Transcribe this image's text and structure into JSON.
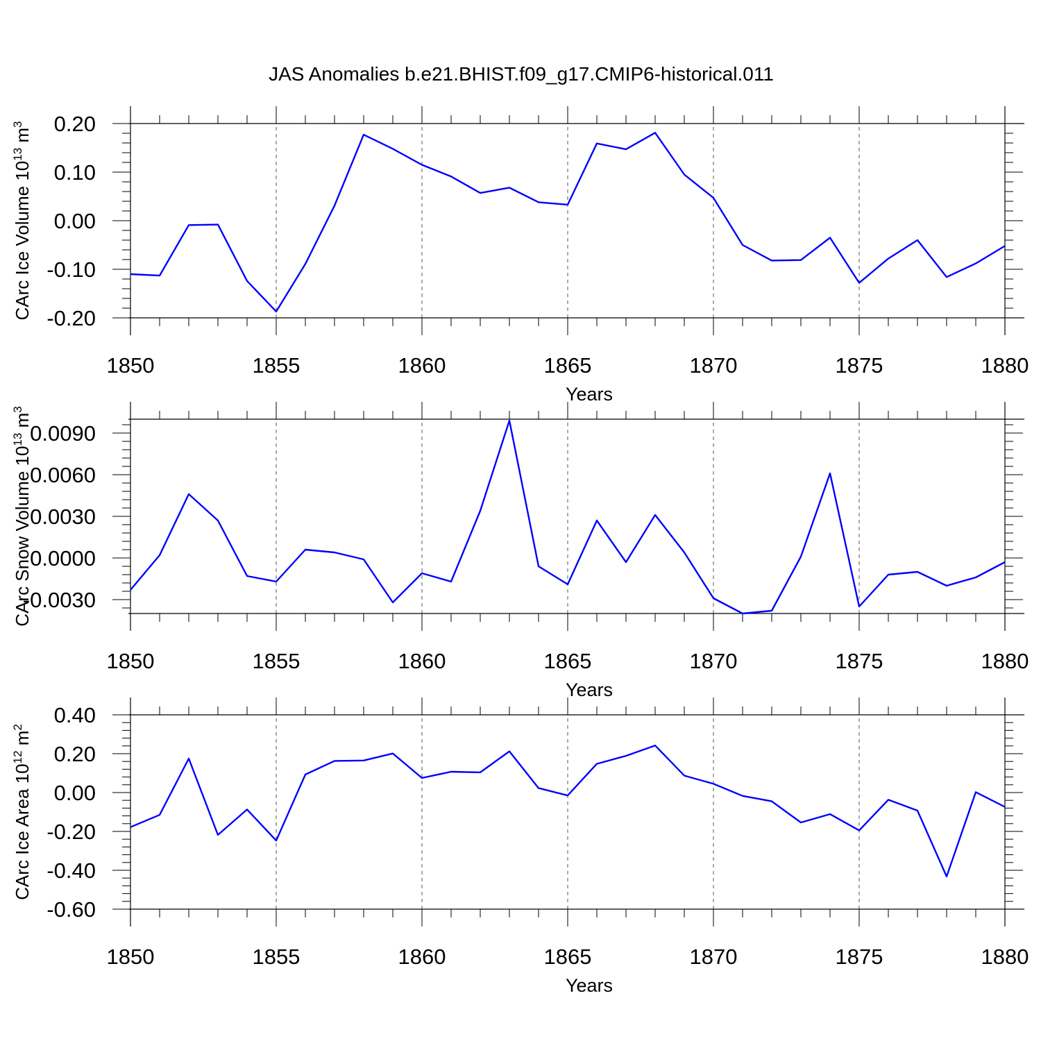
{
  "title": "JAS Anomalies b.e21.BHIST.f09_g17.CMIP6-historical.011",
  "colors": {
    "line": "#0000ff",
    "axis": "#000000",
    "grid": "#555555"
  },
  "chart_data": [
    {
      "type": "line",
      "xlabel": "Years",
      "ylabel": "CArc Ice Volume 10",
      "ylabel_exp": "13",
      "ylabel_unit": " m",
      "ylabel_unit_exp": "3",
      "xlim": [
        1850,
        1880
      ],
      "ylim": [
        -0.2,
        0.2
      ],
      "xticks": [
        "1850",
        "1855",
        "1860",
        "1865",
        "1870",
        "1875",
        "1880"
      ],
      "yticks": [
        "0.20",
        "0.10",
        "0.00",
        "-0.10",
        "-0.20"
      ],
      "grid": "vertical dashed at major x ticks",
      "x": [
        1850,
        1851,
        1852,
        1853,
        1854,
        1855,
        1856,
        1857,
        1858,
        1859,
        1860,
        1861,
        1862,
        1863,
        1864,
        1865,
        1866,
        1867,
        1868,
        1869,
        1870,
        1871,
        1872,
        1873,
        1874,
        1875,
        1876,
        1877,
        1878,
        1879,
        1880
      ],
      "values": [
        -0.11,
        -0.113,
        -0.009,
        -0.008,
        -0.124,
        -0.187,
        -0.089,
        0.031,
        0.177,
        0.148,
        0.115,
        0.091,
        0.057,
        0.068,
        0.038,
        0.033,
        0.159,
        0.147,
        0.181,
        0.095,
        0.047,
        -0.05,
        -0.082,
        -0.081,
        -0.035,
        -0.128,
        -0.078,
        -0.04,
        -0.116,
        -0.088,
        -0.052
      ]
    },
    {
      "type": "line",
      "xlabel": "Years",
      "ylabel": "CArc Snow Volume 10",
      "ylabel_exp": "13",
      "ylabel_unit": " m",
      "ylabel_unit_exp": "3",
      "xlim": [
        1850,
        1880
      ],
      "ylim": [
        -0.004,
        0.01
      ],
      "xticks": [
        "1850",
        "1855",
        "1860",
        "1865",
        "1870",
        "1875",
        "1880"
      ],
      "yticks": [
        "0.0090",
        "0.0060",
        "0.0030",
        "0.0000",
        "-0.0030"
      ],
      "grid": "vertical dashed at major x ticks",
      "x": [
        1850,
        1851,
        1852,
        1853,
        1854,
        1855,
        1856,
        1857,
        1858,
        1859,
        1860,
        1861,
        1862,
        1863,
        1864,
        1865,
        1866,
        1867,
        1868,
        1869,
        1870,
        1871,
        1872,
        1873,
        1874,
        1875,
        1876,
        1877,
        1878,
        1879,
        1880
      ],
      "values": [
        -0.0023,
        0.0002,
        0.0046,
        0.0027,
        -0.0013,
        -0.0017,
        0.0006,
        0.0004,
        -0.0001,
        -0.0032,
        -0.0011,
        -0.0017,
        0.0034,
        0.0099,
        -0.0006,
        -0.0019,
        0.0027,
        -0.0003,
        0.0031,
        0.0004,
        -0.0029,
        -0.004,
        -0.0038,
        0.0001,
        0.0061,
        -0.0035,
        -0.0012,
        -0.001,
        -0.002,
        -0.0014,
        -0.0003
      ]
    },
    {
      "type": "line",
      "xlabel": "Years",
      "ylabel": "CArc Ice Area 10",
      "ylabel_exp": "12",
      "ylabel_unit": " m",
      "ylabel_unit_exp": "2",
      "xlim": [
        1850,
        1880
      ],
      "ylim": [
        -0.6,
        0.4
      ],
      "xticks": [
        "1850",
        "1855",
        "1860",
        "1865",
        "1870",
        "1875",
        "1880"
      ],
      "yticks": [
        "0.40",
        "0.20",
        "0.00",
        "-0.20",
        "-0.40",
        "-0.60"
      ],
      "grid": "vertical dashed at major x ticks",
      "x": [
        1850,
        1851,
        1852,
        1853,
        1854,
        1855,
        1856,
        1857,
        1858,
        1859,
        1860,
        1861,
        1862,
        1863,
        1864,
        1865,
        1866,
        1867,
        1868,
        1869,
        1870,
        1871,
        1872,
        1873,
        1874,
        1875,
        1876,
        1877,
        1878,
        1879,
        1880
      ],
      "values": [
        -0.178,
        -0.115,
        0.175,
        -0.218,
        -0.087,
        -0.247,
        0.093,
        0.163,
        0.165,
        0.201,
        0.075,
        0.107,
        0.104,
        0.212,
        0.023,
        -0.015,
        0.148,
        0.189,
        0.242,
        0.087,
        0.045,
        -0.017,
        -0.045,
        -0.154,
        -0.111,
        -0.195,
        -0.037,
        -0.093,
        -0.432,
        0.002,
        -0.074
      ]
    }
  ]
}
